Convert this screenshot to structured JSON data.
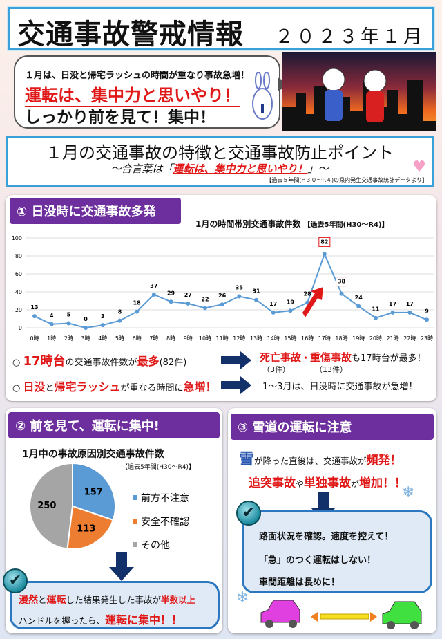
{
  "header": {
    "title": "交通事故警戒情報",
    "date": "２０２３年１月"
  },
  "bubble": {
    "line1": "１月は、日没と帰宅ラッシュの時間が重なり事故急増！",
    "line2": "運転は、集中力と思いやり！",
    "line3": "しっかり前を見て！集中！"
  },
  "subtitle": {
    "main": "１月の交通事故の特徴と交通事故防止ポイント",
    "slogan_prefix": "～合言葉は「",
    "slogan": "運転は、集中力と思いやり！",
    "slogan_suffix": "」～",
    "source": "【過去５年間(H３０～R４)の県内発生交通事故統計データより】"
  },
  "section1": {
    "heading": "① 日没時に交通事故多発",
    "chart_title": "1月の時間帯別交通事故件数",
    "chart_period": "【過去5年間(H30～R4)】",
    "point1": {
      "a": "17時台",
      "b": "の交通事故件数が",
      "c": "最多",
      "d": "(82件)"
    },
    "result1": {
      "a": "死亡事故",
      "b": "・",
      "c": "重傷事故",
      "d": "も17時台が最多！",
      "e": "（3件）",
      "f": "（13件）"
    },
    "point2": {
      "a": "日没",
      "b": "と",
      "c": "帰宅ラッシュ",
      "d": "が重なる時間に",
      "e": "急増！"
    },
    "result2": "1～3月は、日没時に交通事故が急増！"
  },
  "section2": {
    "heading": "② 前を見て、運転に集中!",
    "chart_title": "1月中の事故原因別交通事故件数",
    "chart_period": "【過去5年間(H30～R4)】",
    "msg": {
      "a": "漫然",
      "b": "と",
      "c": "運転",
      "d": "した結果発生した事故が",
      "e": "半数以上",
      "f": "ハンドルを握ったら、",
      "g": "運転に集中！！"
    }
  },
  "section3": {
    "heading": "③ 雪道の運転に注意",
    "line1": {
      "a": "雪",
      "b": "が降った直後は、交通事故が",
      "c": "頻発！"
    },
    "line2": {
      "a": "追突事故",
      "b": "や",
      "c": "単独事故",
      "d": "が",
      "e": "増加！！"
    },
    "tips": [
      "路面状況を確認。速度を控えて！",
      "「急」のつく運転はしない！",
      "車間距離は長めに！"
    ]
  },
  "colors": {
    "purple": "#6e2f9e",
    "blue_line": "#5b9bd5",
    "red": "#e01818",
    "navy": "#12306a",
    "pie_blue": "#5b9bd5",
    "pie_orange": "#ed7d31",
    "pie_gray": "#a5a5a5"
  },
  "chart_data": [
    {
      "type": "line",
      "title": "1月の時間帯別交通事故件数",
      "categories": [
        "0時",
        "1時",
        "2時",
        "3時",
        "4時",
        "5時",
        "6時",
        "7時",
        "8時",
        "9時",
        "10時",
        "11時",
        "12時",
        "13時",
        "14時",
        "15時",
        "16時",
        "17時",
        "18時",
        "19時",
        "20時",
        "21時",
        "22時",
        "23時"
      ],
      "values": [
        13,
        4,
        5,
        0,
        3,
        8,
        18,
        37,
        29,
        27,
        22,
        26,
        35,
        31,
        17,
        19,
        28,
        82,
        38,
        24,
        11,
        17,
        17,
        9
      ],
      "ylim": [
        0,
        100
      ],
      "yticks": [
        0,
        20,
        40,
        60,
        80,
        100
      ],
      "grid": true,
      "highlighted": [
        "17時",
        "18時"
      ]
    },
    {
      "type": "pie",
      "title": "1月中の事故原因別交通事故件数",
      "categories": [
        "前方不注意",
        "安全不確認",
        "その他"
      ],
      "values": [
        157,
        113,
        250
      ],
      "legend": "right"
    }
  ]
}
